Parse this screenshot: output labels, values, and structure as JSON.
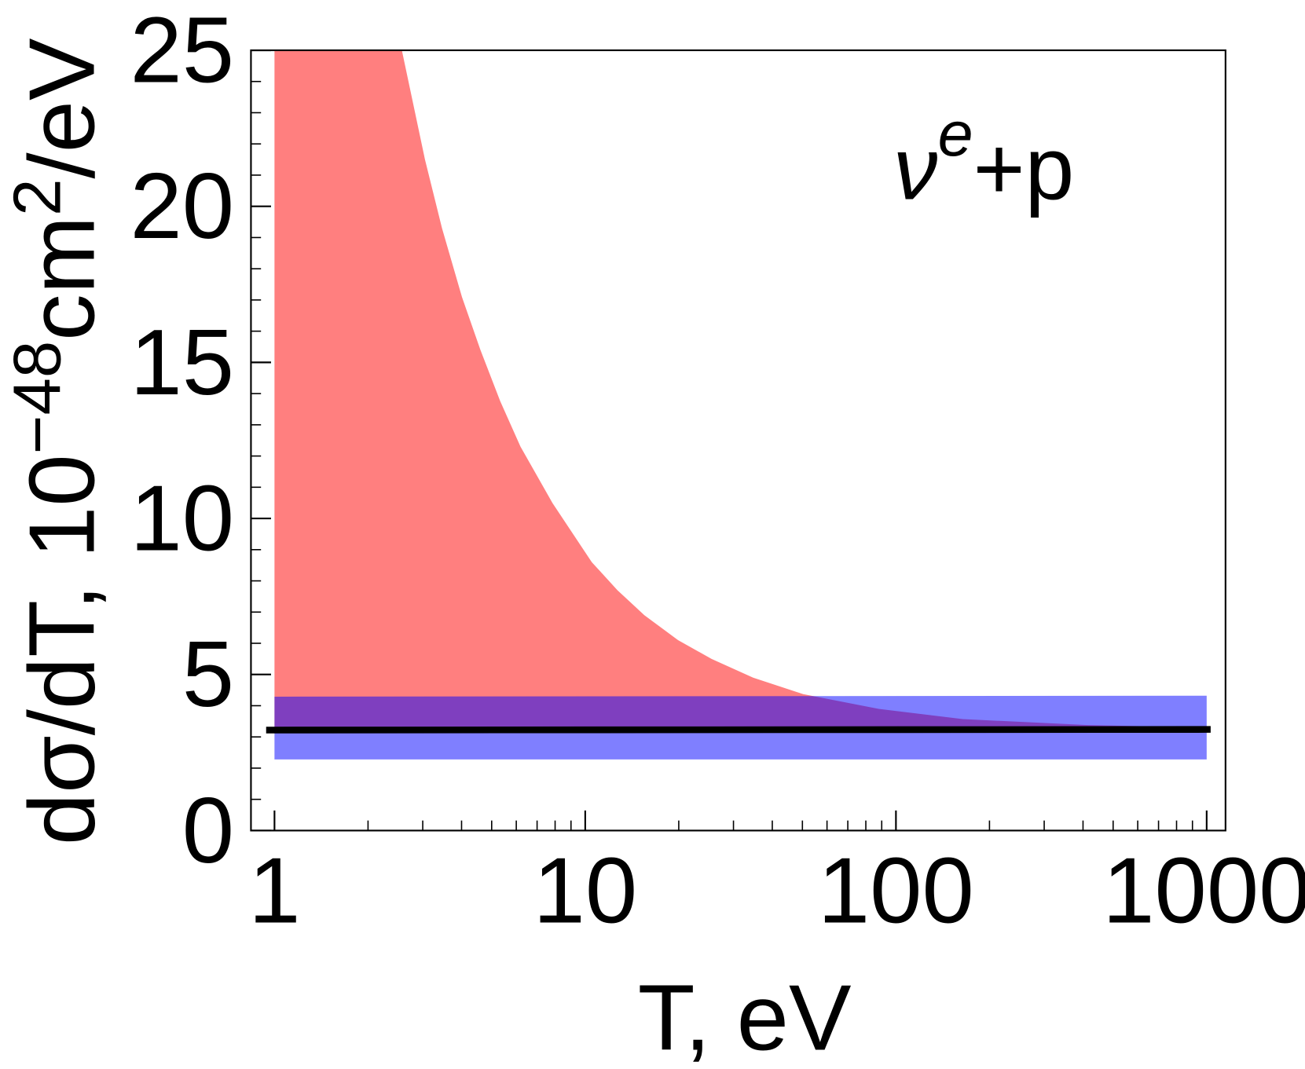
{
  "chart_data": {
    "type": "band-line",
    "x_label": "T, eV",
    "y_label": {
      "main": "dσ/dT, 10",
      "exp": "−48",
      "unit": "cm",
      "unit_exp": "2",
      "tail": "/eV"
    },
    "annotation": {
      "base": "ν",
      "sup": "e",
      "rest": "+p"
    },
    "xscale": "log",
    "xlim": [
      0.84,
      1150
    ],
    "ylim": [
      0,
      25
    ],
    "xticks": [
      1,
      10,
      100,
      1000
    ],
    "xminor_ticks": [
      2,
      3,
      4,
      5,
      6,
      7,
      8,
      9,
      20,
      30,
      40,
      50,
      60,
      70,
      80,
      90,
      200,
      300,
      400,
      500,
      600,
      700,
      800,
      900
    ],
    "yticks": [
      0,
      5,
      10,
      15,
      20,
      25
    ],
    "yminor_ticks": [
      1,
      2,
      3,
      4,
      6,
      7,
      8,
      9,
      11,
      12,
      13,
      14,
      16,
      17,
      18,
      19,
      21,
      22,
      23,
      24
    ],
    "series": [
      {
        "kind": "band",
        "color": "#ff0000",
        "opacity": 0.5,
        "x": [
          1,
          2.57,
          3.05,
          3.46,
          4.01,
          4.6,
          5.33,
          6.19,
          7.84,
          10.5,
          12.7,
          15.5,
          19.9,
          25.5,
          34.7,
          50.3,
          88,
          164,
          415,
          1000
        ],
        "upper": [
          25,
          25,
          21.5,
          19.3,
          17.1,
          15.4,
          13.75,
          12.3,
          10.5,
          8.6,
          7.7,
          6.9,
          6.1,
          5.5,
          4.9,
          4.37,
          3.9,
          3.57,
          3.38,
          3.3
        ],
        "lower": [
          3.22,
          3.22,
          3.22,
          3.22,
          3.22,
          3.22,
          3.22,
          3.22,
          3.22,
          3.22,
          3.22,
          3.22,
          3.22,
          3.22,
          3.22,
          3.22,
          3.22,
          3.22,
          3.22,
          3.22
        ]
      },
      {
        "kind": "band",
        "color": "#0000ff",
        "opacity": 0.5,
        "x": [
          1,
          1000
        ],
        "upper": [
          4.29,
          4.32
        ],
        "lower": [
          2.28,
          2.28
        ]
      },
      {
        "kind": "line",
        "color": "#000000",
        "x": [
          0.94,
          1030
        ],
        "values": [
          3.22,
          3.24
        ]
      }
    ]
  }
}
